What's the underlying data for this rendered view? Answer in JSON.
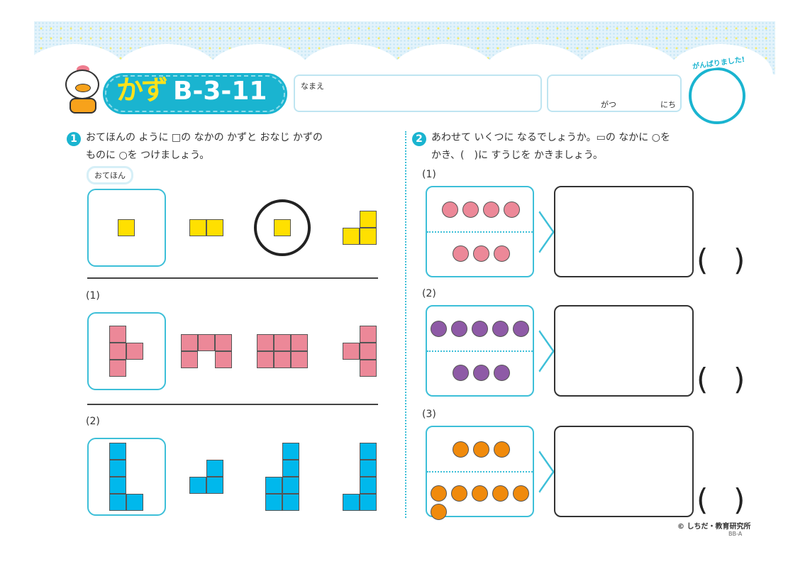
{
  "header": {
    "title_kazu": "かず",
    "title_code": "B-3-11",
    "name_label": "なまえ",
    "month_label": "がつ",
    "day_label": "にち",
    "badge_label": "がんばりました!"
  },
  "colors": {
    "accent": "#1ab4d0",
    "yellow": "#ffe000",
    "pink": "#ec8898",
    "blue": "#00b8ec",
    "purple": "#8e5aa6",
    "orange": "#f08a0c"
  },
  "q1": {
    "number": "1",
    "line1": "おてほんの ように □の なかの かずと おなじ かずの",
    "line2": "ものに ○を つけましょう。",
    "example_label": "おてほん",
    "rows": [
      {
        "label": "",
        "color": "yellow",
        "shapes": [
          "1",
          "11",
          "O",
          "01/11"
        ],
        "circled": 2
      },
      {
        "label": "(1)",
        "color": "pink",
        "shapes": [
          "10/11/10",
          "111/101",
          "111/111",
          "01/11/01"
        ]
      },
      {
        "label": "(2)",
        "color": "blue",
        "shapes": [
          "10/10/10/11",
          "01/11",
          "01/01/11/11",
          "01/01/01/11"
        ]
      }
    ]
  },
  "q2": {
    "number": "2",
    "line1": "あわせて いくつに なるでしょうか。▭の なかに ○を",
    "line2": "かき、(　)に すうじを かきましょう。",
    "items": [
      {
        "label": "(1)",
        "color": "pink",
        "top": 4,
        "bottom": 3,
        "paren_open": "(",
        "paren_close": ")"
      },
      {
        "label": "(2)",
        "color": "purple",
        "top": 5,
        "bottom": 3,
        "paren_open": "(",
        "paren_close": ")"
      },
      {
        "label": "(3)",
        "color": "orange",
        "top": 3,
        "bottom": 6,
        "paren_open": "(",
        "paren_close": ")"
      }
    ]
  },
  "footer": {
    "copyright": "© しちだ・教育研究所",
    "code": "BB-A"
  }
}
